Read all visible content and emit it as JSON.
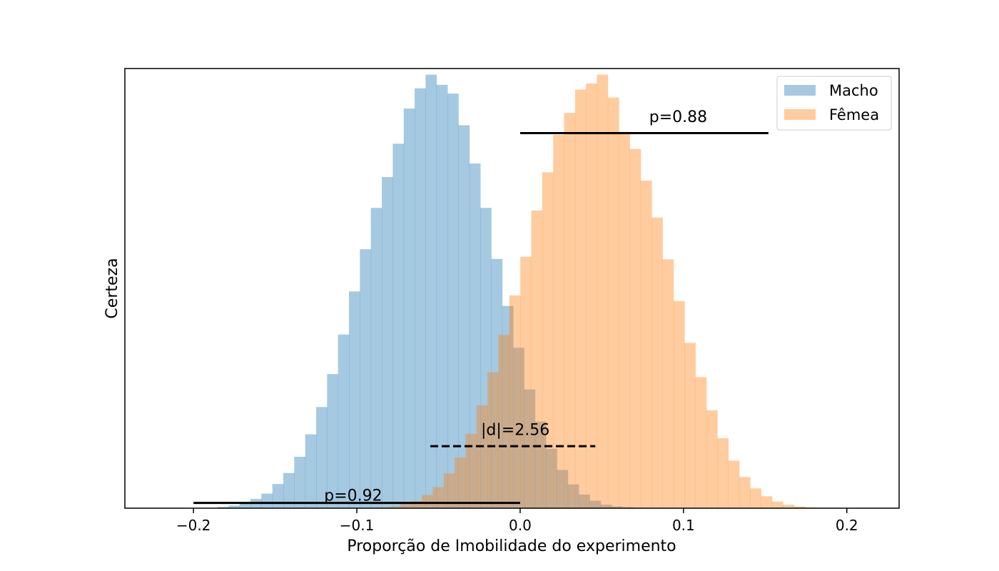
{
  "chart_data": {
    "type": "histogram",
    "xlabel": "Proporção de Imobilidade do experimento",
    "ylabel": "Certeza",
    "xlim": [
      -0.242,
      0.232
    ],
    "ylim": [
      0,
      1.0
    ],
    "y_ticks_shown": false,
    "grid": false,
    "legend_position": "top-right",
    "x_ticks": [
      {
        "value": -0.2,
        "label": "−0.2"
      },
      {
        "value": -0.1,
        "label": "−0.1"
      },
      {
        "value": 0.0,
        "label": "0.0"
      },
      {
        "value": 0.1,
        "label": "0.1"
      },
      {
        "value": 0.2,
        "label": "0.2"
      }
    ],
    "bin_width": 0.0067,
    "series": [
      {
        "name": "Macho",
        "color": "#1f77b4",
        "alpha": 0.4,
        "bins_start": -0.1852,
        "values": [
          0.003,
          0.006,
          0.012,
          0.021,
          0.033,
          0.055,
          0.08,
          0.117,
          0.168,
          0.23,
          0.305,
          0.395,
          0.493,
          0.589,
          0.683,
          0.753,
          0.829,
          0.909,
          0.955,
          0.986,
          0.963,
          0.943,
          0.871,
          0.784,
          0.683,
          0.567,
          0.46,
          0.365,
          0.27,
          0.197,
          0.135,
          0.087,
          0.054,
          0.031,
          0.017,
          0.008,
          0.004,
          0.002
        ]
      },
      {
        "name": "Fêmea",
        "color": "#ff7f0e",
        "alpha": 0.4,
        "bins_start": -0.087,
        "values": [
          0.002,
          0.004,
          0.009,
          0.016,
          0.03,
          0.048,
          0.079,
          0.115,
          0.169,
          0.234,
          0.309,
          0.394,
          0.484,
          0.572,
          0.677,
          0.764,
          0.849,
          0.899,
          0.952,
          0.966,
          0.986,
          0.934,
          0.856,
          0.817,
          0.745,
          0.661,
          0.566,
          0.471,
          0.376,
          0.298,
          0.223,
          0.159,
          0.108,
          0.071,
          0.045,
          0.027,
          0.015,
          0.008,
          0.004,
          0.002
        ]
      }
    ],
    "annotations": [
      {
        "type": "line",
        "style": "solid",
        "x1": 0.0,
        "x2": 0.152,
        "y": 0.853,
        "label": "p=0.88",
        "label_x": 0.079,
        "label_y": 0.878
      },
      {
        "type": "line",
        "style": "dashed",
        "x1": -0.055,
        "x2": 0.046,
        "y": 0.141,
        "label": "|d|=2.56",
        "label_x": -0.024,
        "label_y": 0.166
      },
      {
        "type": "line",
        "style": "solid",
        "x1": -0.2,
        "x2": 0.0,
        "y": 0.012,
        "label": "p=0.92",
        "label_x": -0.12,
        "label_y": 0.017
      }
    ]
  }
}
